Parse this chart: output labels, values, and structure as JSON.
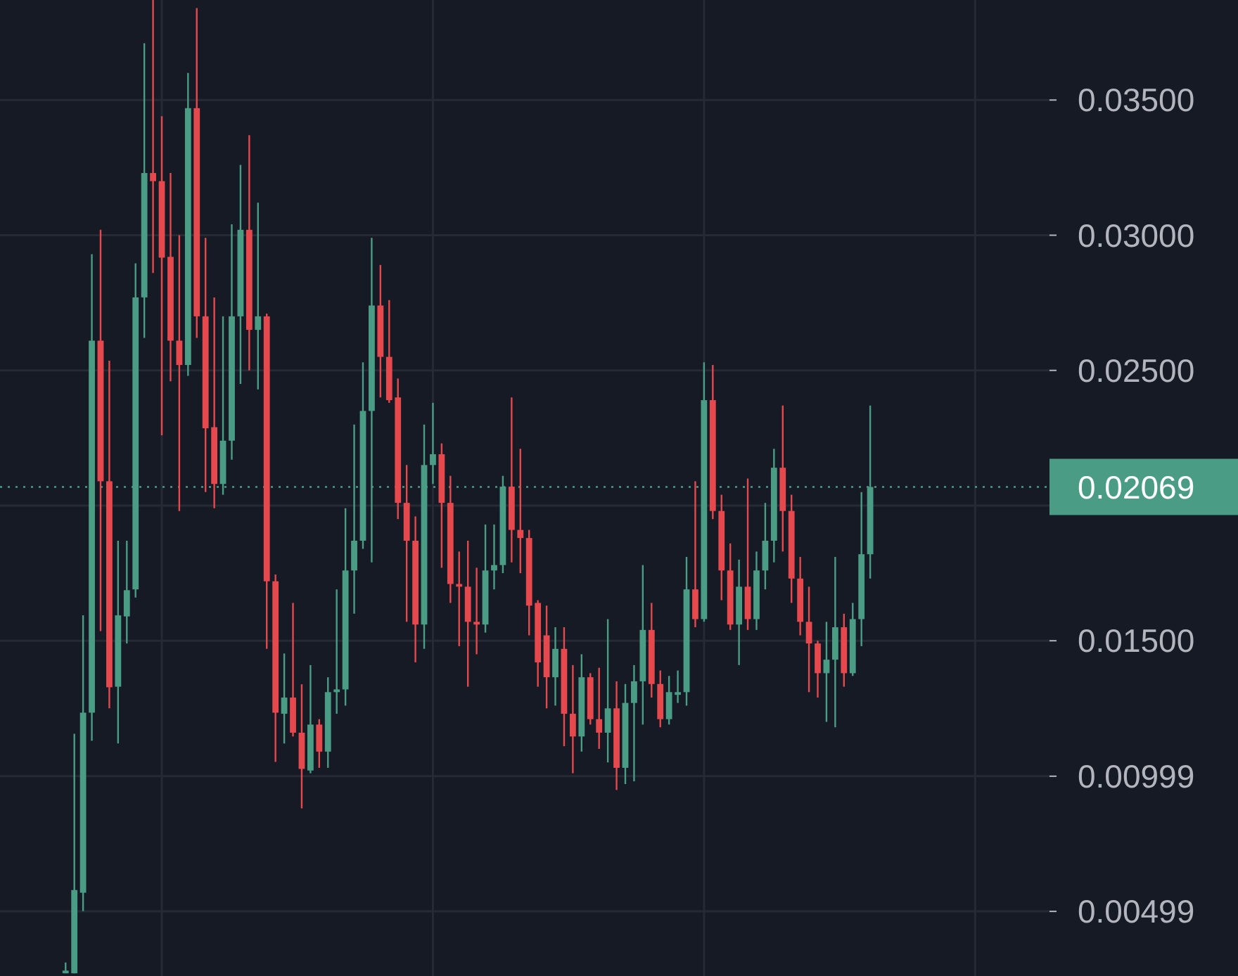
{
  "chart_data": {
    "type": "candlestick",
    "categories": [
      null,
      null,
      null,
      null,
      null,
      null,
      null,
      null,
      null,
      null,
      null,
      null,
      null,
      null,
      null,
      null,
      null,
      null,
      null,
      null,
      null,
      null,
      null,
      null,
      null,
      null,
      null,
      null,
      null,
      null,
      null,
      null,
      null,
      null,
      null,
      null,
      null,
      null,
      null,
      null,
      null,
      null,
      null,
      null,
      null,
      null,
      null,
      null,
      null,
      null,
      null,
      null,
      null,
      null,
      null,
      null,
      null,
      null,
      null,
      null,
      null,
      null,
      null,
      null,
      null,
      null,
      null,
      null,
      null,
      null,
      null,
      null,
      null,
      null,
      null,
      null,
      null,
      null,
      null,
      null,
      null,
      null,
      null,
      null,
      null,
      null,
      null,
      null,
      null,
      null,
      null,
      null,
      null,
      null,
      null,
      null,
      null,
      null,
      null,
      null,
      null,
      null,
      null,
      null,
      null,
      null,
      null,
      null,
      null,
      null,
      null,
      null,
      null,
      null,
      null,
      null,
      null,
      null,
      null,
      null
    ],
    "colors": [
      null,
      null,
      null,
      null,
      null,
      null,
      null,
      "#4a9c85",
      "#4a9c85",
      "#4a9c85",
      "#4a9c85",
      "#e5484d",
      "#e5484d",
      "#4a9c85",
      "#4a9c85",
      "#4a9c85",
      "#4a9c85",
      "#e5484d",
      "#e5484d",
      "#e5484d",
      "#e5484d",
      "#4a9c85",
      "#e5484d",
      "#e5484d",
      "#e5484d",
      "#4a9c85",
      "#4a9c85",
      "#4a9c85",
      "#e5484d",
      "#4a9c85",
      "#e5484d",
      "#e5484d",
      "#4a9c85",
      "#e5484d",
      "#e5484d",
      "#4a9c85",
      "#e5484d",
      "#4a9c85",
      "#4a9c85",
      "#4a9c85",
      "#4a9c85",
      "#4a9c85",
      "#4a9c85",
      "#e5484d",
      "#e5484d",
      "#e5484d",
      "#e5484d",
      "#e5484d",
      "#4a9c85",
      "#4a9c85",
      "#e5484d",
      "#e5484d",
      "#e5484d",
      "#e5484d",
      "#e5484d",
      "#4a9c85",
      "#4a9c85",
      "#4a9c85",
      "#e5484d",
      "#e5484d",
      "#e5484d",
      "#e5484d",
      "#e5484d",
      "#4a9c85",
      "#e5484d",
      "#e5484d",
      "#4a9c85",
      "#e5484d",
      "#e5484d",
      "#4a9c85",
      "#e5484d",
      "#4a9c85",
      "#4a9c85",
      "#4a9c85",
      "#e5484d",
      "#e5484d",
      "#4a9c85",
      "#4a9c85",
      "#4a9c85",
      "#e5484d",
      "#4a9c85",
      "#e5484d",
      "#e5484d",
      "#e5484d",
      "#4a9c85",
      "#e5484d",
      "#4a9c85",
      "#4a9c85",
      "#4a9c85",
      "#e5484d",
      "#e5484d",
      "#e5484d",
      "#e5484d",
      "#e5484d",
      "#4a9c85",
      "#4a9c85",
      "#e5484d",
      "#4a9c85",
      "#4a9c85",
      "#4a9c85",
      null,
      null,
      null,
      null,
      null,
      null,
      null,
      null,
      null,
      null,
      null,
      null,
      null,
      null,
      null,
      null,
      null,
      null,
      null,
      null
    ],
    "ohlc": [
      null,
      null,
      null,
      null,
      null,
      null,
      null,
      [
        0.0027,
        0.0031,
        0.0027,
        0.0028
      ],
      [
        0.0027,
        0.01156,
        0.0027,
        0.00578
      ],
      [
        0.00568,
        0.01594,
        0.005,
        0.01234
      ],
      [
        0.01234,
        0.0293,
        0.0113,
        0.0261
      ],
      [
        0.0261,
        0.0302,
        0.01536,
        0.0209
      ],
      [
        0.0209,
        0.02536,
        0.0125,
        0.01328
      ],
      [
        0.0133,
        0.0187,
        0.0112,
        0.01594
      ],
      [
        0.0159,
        0.0187,
        0.0149,
        0.01687
      ],
      [
        0.0169,
        0.02896,
        0.0166,
        0.0277
      ],
      [
        0.0277,
        0.0371,
        0.0262,
        0.0323
      ],
      [
        0.0323,
        0.0387,
        0.0286,
        0.032
      ],
      [
        0.032,
        0.0344,
        0.0226,
        0.02917
      ],
      [
        0.0292,
        0.0323,
        0.0246,
        0.0261
      ],
      [
        0.0261,
        0.03,
        0.0198,
        0.0252
      ],
      [
        0.0252,
        0.036,
        0.0248,
        0.0347
      ],
      [
        0.0347,
        0.0384,
        0.0262,
        0.027
      ],
      [
        0.027,
        0.0299,
        0.0205,
        0.02286
      ],
      [
        0.0229,
        0.0277,
        0.0199,
        0.0208
      ],
      [
        0.0208,
        0.027,
        0.0204,
        0.0224
      ],
      [
        0.0224,
        0.0304,
        0.0217,
        0.027
      ],
      [
        0.027,
        0.0326,
        0.0245,
        0.0302
      ],
      [
        0.0302,
        0.0337,
        0.025,
        0.0265
      ],
      [
        0.0265,
        0.0312,
        0.0243,
        0.027
      ],
      [
        0.027,
        0.0271,
        0.0147,
        0.0172
      ],
      [
        0.0172,
        0.01745,
        0.01052,
        0.01234
      ],
      [
        0.0123,
        0.01453,
        0.0112,
        0.0129
      ],
      [
        0.0129,
        0.0164,
        0.01146,
        0.0116
      ],
      [
        0.0116,
        0.01339,
        0.0088,
        0.01026
      ],
      [
        0.0102,
        0.0141,
        0.0101,
        0.0119
      ],
      [
        0.0119,
        0.0121,
        0.0103,
        0.0109
      ],
      [
        0.0109,
        0.01365,
        0.0103,
        0.0131
      ],
      [
        0.0131,
        0.0169,
        0.0123,
        0.0132
      ],
      [
        0.0132,
        0.0199,
        0.0126,
        0.0176
      ],
      [
        0.0176,
        0.023,
        0.016,
        0.0187
      ],
      [
        0.0187,
        0.0253,
        0.0184,
        0.0235
      ],
      [
        0.0235,
        0.0299,
        0.0179,
        0.0274
      ],
      [
        0.0274,
        0.0289,
        0.024,
        0.0255
      ],
      [
        0.0255,
        0.0276,
        0.0238,
        0.0239
      ],
      [
        0.024,
        0.0247,
        0.0195,
        0.0201
      ],
      [
        0.0201,
        0.0215,
        0.0157,
        0.0187
      ],
      [
        0.0187,
        0.0196,
        0.0142,
        0.0156
      ],
      [
        0.0156,
        0.023,
        0.0147,
        0.0215
      ],
      [
        0.0215,
        0.0238,
        0.0208,
        0.0219
      ],
      [
        0.0219,
        0.0223,
        0.0177,
        0.0201
      ],
      [
        0.0201,
        0.0211,
        0.0164,
        0.0171
      ],
      [
        0.0171,
        0.0183,
        0.0148,
        0.017
      ],
      [
        0.017,
        0.0187,
        0.0133,
        0.0157
      ],
      [
        0.0157,
        0.0177,
        0.0145,
        0.0156
      ],
      [
        0.0156,
        0.0193,
        0.0153,
        0.0176
      ],
      [
        0.0176,
        0.0193,
        0.0169,
        0.0178
      ],
      [
        0.0178,
        0.0211,
        0.0175,
        0.0207
      ],
      [
        0.0207,
        0.024,
        0.0179,
        0.0191
      ],
      [
        0.0191,
        0.0221,
        0.0175,
        0.0188
      ],
      [
        0.0188,
        0.0191,
        0.0152,
        0.0163
      ],
      [
        0.0164,
        0.0165,
        0.0133,
        0.0142
      ],
      [
        0.0152,
        0.0163,
        0.0125,
        0.01365
      ],
      [
        0.01365,
        0.0155,
        0.0126,
        0.0147
      ],
      [
        0.0147,
        0.0155,
        0.0111,
        0.0123
      ],
      [
        0.0123,
        0.0141,
        0.0101,
        0.01146
      ],
      [
        0.01146,
        0.0145,
        0.0109,
        0.01365
      ],
      [
        0.01365,
        0.0138,
        0.0119,
        0.0121
      ],
      [
        0.0121,
        0.014,
        0.011,
        0.0116
      ],
      [
        0.0116,
        0.0158,
        0.0105,
        0.0125
      ],
      [
        0.0125,
        0.0135,
        0.00948,
        0.0103
      ],
      [
        0.0103,
        0.0134,
        0.0097,
        0.0127
      ],
      [
        0.0127,
        0.0141,
        0.0098,
        0.0135
      ],
      [
        0.0135,
        0.0178,
        0.0119,
        0.0154
      ],
      [
        0.0154,
        0.0164,
        0.0129,
        0.0134
      ],
      [
        0.0134,
        0.0139,
        0.0118,
        0.0121
      ],
      [
        0.0121,
        0.0137,
        0.0119,
        0.0131
      ],
      [
        0.013,
        0.0139,
        0.0127,
        0.0131
      ],
      [
        0.0131,
        0.0181,
        0.0126,
        0.0169
      ],
      [
        0.0169,
        0.0209,
        0.0155,
        0.0158
      ],
      [
        0.0158,
        0.0253,
        0.0157,
        0.0239
      ],
      [
        0.0239,
        0.0252,
        0.0195,
        0.0198
      ],
      [
        0.0198,
        0.0204,
        0.0165,
        0.0176
      ],
      [
        0.0176,
        0.0186,
        0.0154,
        0.0156
      ],
      [
        0.0156,
        0.018,
        0.0141,
        0.017
      ],
      [
        0.017,
        0.021,
        0.0154,
        0.0158
      ],
      [
        0.0158,
        0.0183,
        0.0154,
        0.0176
      ],
      [
        0.0176,
        0.0201,
        0.0169,
        0.0187
      ],
      [
        0.0187,
        0.0221,
        0.0179,
        0.0214
      ],
      [
        0.0214,
        0.0237,
        0.0183,
        0.0198
      ],
      [
        0.0198,
        0.0204,
        0.0164,
        0.0173
      ],
      [
        0.0173,
        0.0181,
        0.0152,
        0.0157
      ],
      [
        0.0157,
        0.017,
        0.0131,
        0.0149
      ],
      [
        0.0149,
        0.015,
        0.0129,
        0.0138
      ],
      [
        0.0138,
        0.0157,
        0.012,
        0.0143
      ],
      [
        0.0143,
        0.0181,
        0.0118,
        0.0155
      ],
      [
        0.0155,
        0.016,
        0.0133,
        0.0138
      ],
      [
        0.0138,
        0.0164,
        0.0137,
        0.0158
      ],
      [
        0.0158,
        0.0205,
        0.0148,
        0.0182
      ],
      [
        0.0182,
        0.0237,
        0.0173,
        0.02069
      ],
      null,
      null,
      null,
      null,
      null,
      null,
      null,
      null,
      null,
      null,
      null,
      null,
      null,
      null,
      null,
      null,
      null,
      null,
      null,
      null
    ],
    "ylim": [
      0.0026,
      0.0387
    ],
    "yticks": [
      {
        "value": 0.035,
        "label": "0.03500"
      },
      {
        "value": 0.03,
        "label": "0.03000"
      },
      {
        "value": 0.025,
        "label": "0.02500"
      },
      {
        "value": 0.02,
        "label": null
      },
      {
        "value": 0.015,
        "label": "0.01500"
      },
      0.00999,
      0.00499
    ],
    "grid": true,
    "tick_labels": "y",
    "ref_lines": [
      {
        "axis": "y",
        "value": 0.02069,
        "label": "0.02069",
        "color": "#4a9c85",
        "line_style": "dotted"
      }
    ]
  }
}
